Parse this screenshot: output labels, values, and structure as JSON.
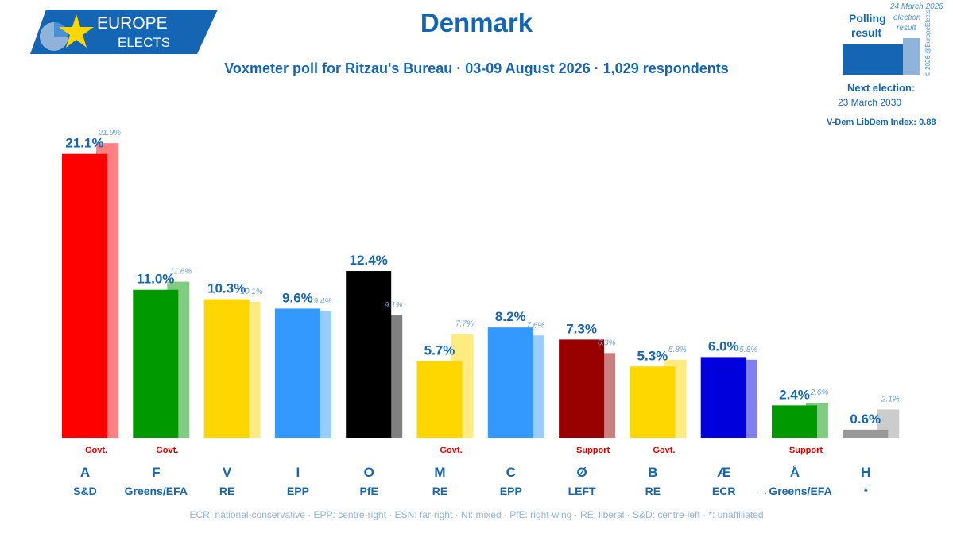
{
  "header": {
    "logo_line1": "EUROPE",
    "logo_line2": "ELECTS",
    "title": "Denmark",
    "subtitle": "Voxmeter poll for Ritzau's Bureau · 03-09 August 2026 · 1,029 respondents"
  },
  "legend": {
    "polling_label_1": "Polling",
    "polling_label_2": "result",
    "election_label_1": "24 March 2026",
    "election_label_2": "election",
    "election_label_3": "result",
    "copyright": "© 2026 @EuropeElects",
    "next_election_label": "Next election:",
    "next_election_date": "23 March 2030",
    "vdem": "V-Dem LibDem Index: 0.88"
  },
  "footnote": "ECR: national-conservative · EPP: centre-right · ESN: far-right · NI: mixed · PfE: right-wing · RE: liberal · S&D: centre-left · *: unaffiliated",
  "chart_data": {
    "type": "bar",
    "ylim": [
      0,
      22.5
    ],
    "categories": [
      "A",
      "F",
      "V",
      "I",
      "O",
      "M",
      "C",
      "Ø",
      "B",
      "Æ",
      "Å",
      "H"
    ],
    "groups": [
      "S&D",
      "Greens/EFA",
      "RE",
      "EPP",
      "PfE",
      "RE",
      "EPP",
      "LEFT",
      "RE",
      "ECR",
      "→Greens/EFA",
      "*"
    ],
    "status": [
      "Govt.",
      "Govt.",
      "",
      "",
      "",
      "Govt.",
      "",
      "Support",
      "Govt.",
      "",
      "Support",
      ""
    ],
    "colors": [
      "#ff0000",
      "#009900",
      "#ffd700",
      "#3399ff",
      "#000000",
      "#ffd700",
      "#3399ff",
      "#990000",
      "#ffd700",
      "#0000dd",
      "#009900",
      "#999999"
    ],
    "prev_colors": [
      "#ff8080",
      "#80cc80",
      "#ffeb80",
      "#99ccff",
      "#808080",
      "#ffeb80",
      "#99ccff",
      "#cc8080",
      "#ffeb80",
      "#8080ee",
      "#80cc80",
      "#cccccc"
    ],
    "series": [
      {
        "name": "Polling result",
        "values": [
          21.1,
          11.0,
          10.3,
          9.6,
          12.4,
          5.7,
          8.2,
          7.3,
          5.3,
          6.0,
          2.4,
          0.6
        ],
        "labels": [
          "21.1%",
          "11.0%",
          "10.3%",
          "9.6%",
          "12.4%",
          "5.7%",
          "8.2%",
          "7.3%",
          "5.3%",
          "6.0%",
          "2.4%",
          "0.6%"
        ]
      },
      {
        "name": "election result",
        "values": [
          21.9,
          11.6,
          10.1,
          9.4,
          9.1,
          7.7,
          7.6,
          6.3,
          5.8,
          5.8,
          2.6,
          2.1
        ],
        "labels": [
          "21.9%",
          "11.6%",
          "10.1%",
          "9.4%",
          "9.1%",
          "7.7%",
          "7.6%",
          "6.3%",
          "5.8%",
          "5.8%",
          "2.6%",
          "2.1%"
        ]
      }
    ]
  }
}
